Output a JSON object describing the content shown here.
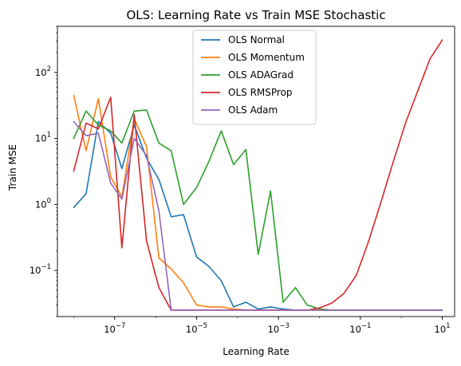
{
  "chart_data": {
    "type": "line",
    "title": "OLS: Learning Rate vs Train MSE Stochastic",
    "xlabel": "Learning Rate",
    "ylabel": "Train MSE",
    "xscale": "log",
    "yscale": "log",
    "xlim": [
      4e-09,
      20
    ],
    "ylim": [
      0.02,
      500
    ],
    "x_ticks": [
      {
        "value": 1e-07,
        "base": "10",
        "exp": "−7"
      },
      {
        "value": 1e-05,
        "base": "10",
        "exp": "−5"
      },
      {
        "value": 0.001,
        "base": "10",
        "exp": "−3"
      },
      {
        "value": 0.1,
        "base": "10",
        "exp": "−1"
      },
      {
        "value": 10,
        "base": "10",
        "exp": "1"
      }
    ],
    "y_ticks": [
      {
        "value": 0.1,
        "base": "10",
        "exp": "−1"
      },
      {
        "value": 1,
        "base": "10",
        "exp": "0"
      },
      {
        "value": 10,
        "base": "10",
        "exp": "1"
      },
      {
        "value": 100,
        "base": "10",
        "exp": "2"
      }
    ],
    "legend_position": "upper-center",
    "x": [
      1e-08,
      2e-08,
      4e-08,
      8e-08,
      1.5e-07,
      3e-07,
      6e-07,
      1.2e-06,
      2.4e-06,
      4.8e-06,
      1e-05,
      2e-05,
      4e-05,
      8e-05,
      0.00016,
      0.00032,
      0.00064,
      0.0013,
      0.0026,
      0.005,
      0.01,
      0.02,
      0.04,
      0.08,
      0.16,
      0.32,
      0.64,
      1.3,
      2.6,
      5,
      10
    ],
    "series": [
      {
        "name": "OLS Normal",
        "color": "#1f77b4",
        "values": [
          0.9,
          1.45,
          18.0,
          12.0,
          3.5,
          16.0,
          5.0,
          2.4,
          0.65,
          0.7,
          0.16,
          0.115,
          0.07,
          0.028,
          0.033,
          0.026,
          0.028,
          0.026,
          0.025,
          0.025,
          0.025,
          0.025,
          0.025,
          0.025,
          0.025,
          0.025,
          0.025,
          0.025,
          0.025,
          0.025,
          0.025
        ]
      },
      {
        "name": "OLS Momentum",
        "color": "#ff7f0e",
        "values": [
          45.0,
          6.5,
          40.0,
          2.6,
          1.3,
          20.0,
          7.5,
          0.155,
          0.105,
          0.065,
          0.03,
          0.028,
          0.028,
          0.026,
          0.025,
          0.025,
          0.025,
          0.025,
          0.025,
          0.025,
          0.025,
          0.025,
          0.025,
          0.025,
          0.025,
          0.025,
          0.025,
          0.025,
          0.025,
          0.025,
          0.025
        ]
      },
      {
        "name": "OLS ADAGrad",
        "color": "#2ca02c",
        "values": [
          10.0,
          26.0,
          16.0,
          13.0,
          8.5,
          26.0,
          27.0,
          8.5,
          6.5,
          1.0,
          1.8,
          4.5,
          13.0,
          4.0,
          6.8,
          0.175,
          1.6,
          0.033,
          0.055,
          0.03,
          0.026,
          0.025,
          0.025,
          0.025,
          0.025,
          0.025,
          0.025,
          0.025,
          0.025,
          0.025,
          0.025
        ]
      },
      {
        "name": "OLS RMSProp",
        "color": "#d62728",
        "values": [
          3.2,
          17.0,
          14.0,
          42.0,
          0.22,
          23.0,
          0.28,
          0.055,
          0.025,
          0.025,
          0.025,
          0.025,
          0.025,
          0.025,
          0.025,
          0.025,
          0.025,
          0.025,
          0.025,
          0.025,
          0.027,
          0.032,
          0.045,
          0.085,
          0.28,
          1.1,
          4.5,
          18.0,
          55.0,
          160.0,
          310.0
        ]
      },
      {
        "name": "OLS Adam",
        "color": "#9467bd",
        "values": [
          18.0,
          11.0,
          12.0,
          2.1,
          1.2,
          10.0,
          5.5,
          0.8,
          0.025,
          0.025,
          0.025,
          0.025,
          0.025,
          0.025,
          0.025,
          0.025,
          0.025,
          0.025,
          0.025,
          0.025,
          0.025,
          0.025,
          0.025,
          0.025,
          0.025,
          0.025,
          0.025,
          0.025,
          0.025,
          0.025,
          0.025
        ]
      }
    ]
  }
}
